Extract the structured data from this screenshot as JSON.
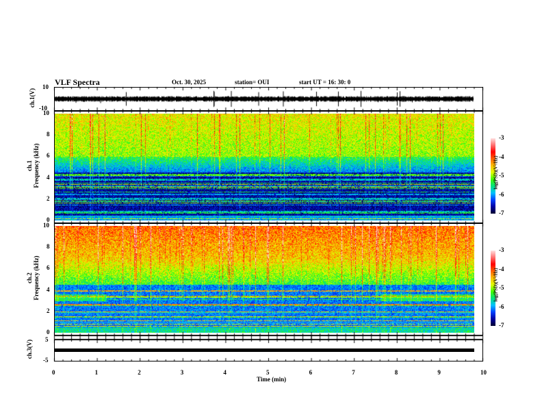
{
  "header": {
    "title": "VLF Spectra",
    "date": "Oct. 30, 2025",
    "station": "station= OUI",
    "start": "start  UT =   16: 30: 0"
  },
  "colors": {
    "trace": "#000000"
  },
  "chart_data": [
    {
      "type": "line",
      "name": "ch1 waveform",
      "ylabel": "ch.1(V)",
      "ylim": [
        -10,
        10
      ],
      "yticks": [
        "10",
        "-10"
      ],
      "xlim": [
        0,
        10
      ],
      "baseline": 0
    },
    {
      "type": "heatmap",
      "name": "ch1 spectrogram",
      "ylabel": "ch.1\nFrequency (kHz)",
      "ylabel_line1": "ch.1",
      "ylabel_line2": "Frequency  (kHz)",
      "ylim": [
        0,
        10
      ],
      "yticks": [
        "0",
        "2",
        "4",
        "6",
        "8",
        "10"
      ],
      "xlim": [
        0,
        10
      ],
      "colorbar": {
        "label": "log(PSD)(V²/Hz)",
        "range": [
          -7,
          -3
        ],
        "ticks": [
          "-3",
          "-4",
          "-5",
          "-6",
          "-7"
        ]
      }
    },
    {
      "type": "heatmap",
      "name": "ch2 spectrogram",
      "ylabel_line1": "ch.2",
      "ylabel_line2": "Frequency  (kHz)",
      "ylim": [
        0,
        10
      ],
      "yticks": [
        "0",
        "2",
        "4",
        "6",
        "8",
        "10"
      ],
      "xlim": [
        0,
        10
      ],
      "colorbar": {
        "label": "log(PSD)(V²/Hz)",
        "range": [
          -7,
          -3
        ],
        "ticks": [
          "-3",
          "-4",
          "-5",
          "-6",
          "-7"
        ]
      }
    },
    {
      "type": "line",
      "name": "ch3 waveform",
      "ylabel": "ch.3(V)",
      "ylim": [
        -5,
        5
      ],
      "yticks": [
        "5",
        "-5"
      ],
      "xlim": [
        0,
        10
      ],
      "baseline": 0,
      "data_end_min": 9.8
    }
  ],
  "xaxis": {
    "label": "Time  (min)",
    "ticks": [
      "0",
      "1",
      "2",
      "3",
      "4",
      "5",
      "6",
      "7",
      "8",
      "9",
      "10"
    ]
  }
}
